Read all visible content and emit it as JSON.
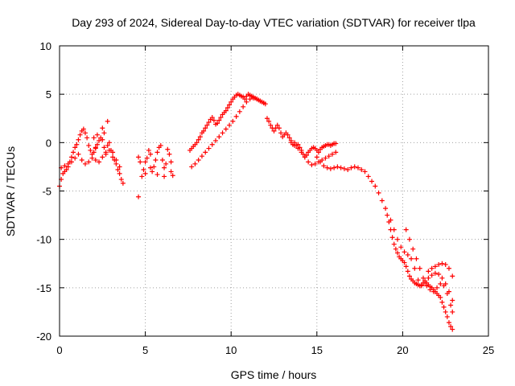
{
  "chart_data": {
    "type": "scatter",
    "title": "Day 293 of 2024, Sidereal Day-to-day VTEC variation (SDTVAR) for receiver tlpa",
    "xlabel": "GPS time / hours",
    "ylabel": "SDTVAR / TECUs",
    "xlim": [
      0,
      25
    ],
    "ylim": [
      -20,
      10
    ],
    "xticks": [
      0,
      5,
      10,
      15,
      20,
      25
    ],
    "yticks": [
      -20,
      -15,
      -10,
      -5,
      0,
      5,
      10
    ],
    "grid": true,
    "marker": "+",
    "color": "#ff0000",
    "series": [
      {
        "name": "SDTVAR",
        "x": [
          0.0,
          0.1,
          0.2,
          0.3,
          0.4,
          0.5,
          0.6,
          0.7,
          0.8,
          0.9,
          1.0,
          1.1,
          1.2,
          1.3,
          1.4,
          1.5,
          1.6,
          1.7,
          1.8,
          1.9,
          2.0,
          2.1,
          2.2,
          2.3,
          2.4,
          2.5,
          2.6,
          2.7,
          2.8,
          2.9,
          3.0,
          3.1,
          3.2,
          3.3,
          3.4,
          3.5,
          3.6,
          3.7,
          0.1,
          0.3,
          0.5,
          0.7,
          0.9,
          1.1,
          1.3,
          1.5,
          1.7,
          1.9,
          2.1,
          2.3,
          2.5,
          2.7,
          2.9,
          3.1,
          3.3,
          3.5,
          2.0,
          2.2,
          2.5,
          2.8,
          2.1,
          2.6,
          4.6,
          4.7,
          4.8,
          4.9,
          5.0,
          5.1,
          5.2,
          5.3,
          5.4,
          5.5,
          5.6,
          5.7,
          5.8,
          5.9,
          6.0,
          6.1,
          6.2,
          6.3,
          6.4,
          6.5,
          6.6,
          4.6,
          5.0,
          5.3,
          5.7,
          6.1,
          6.5,
          7.6,
          7.7,
          7.8,
          7.9,
          8.0,
          8.1,
          8.2,
          8.3,
          8.4,
          8.5,
          8.6,
          8.7,
          8.8,
          8.9,
          9.0,
          9.1,
          9.2,
          9.3,
          9.4,
          9.5,
          9.6,
          9.7,
          9.8,
          9.9,
          10.0,
          10.1,
          10.2,
          10.3,
          10.4,
          10.5,
          10.6,
          10.7,
          10.8,
          10.9,
          11.0,
          11.1,
          11.2,
          11.3,
          11.4,
          11.5,
          11.6,
          11.7,
          11.8,
          11.9,
          12.0,
          7.7,
          7.9,
          8.1,
          8.3,
          8.5,
          8.7,
          8.9,
          9.1,
          9.3,
          9.5,
          9.7,
          9.9,
          10.1,
          10.3,
          10.5,
          10.7,
          10.9,
          11.1,
          11.3,
          11.5,
          11.7,
          11.9,
          12.1,
          12.2,
          12.3,
          12.4,
          12.5,
          12.6,
          12.7,
          12.8,
          12.9,
          13.0,
          13.1,
          13.2,
          13.3,
          13.4,
          13.5,
          13.6,
          13.7,
          13.8,
          13.9,
          14.0,
          14.1,
          14.2,
          14.3,
          14.4,
          14.5,
          14.6,
          14.7,
          14.8,
          14.9,
          15.0,
          15.1,
          15.2,
          15.3,
          15.4,
          15.5,
          15.6,
          15.7,
          15.8,
          15.9,
          16.0,
          16.1,
          13.5,
          13.7,
          13.9,
          14.1,
          14.3,
          14.5,
          14.7,
          14.9,
          15.1,
          15.3,
          15.5,
          15.7,
          15.9,
          16.1,
          15.0,
          15.2,
          15.4,
          15.6,
          15.8,
          16.0,
          16.2,
          16.4,
          16.6,
          16.8,
          17.0,
          17.2,
          17.4,
          17.6,
          17.8,
          18.0,
          18.2,
          18.4,
          18.6,
          18.8,
          19.0,
          19.1,
          19.2,
          19.3,
          19.4,
          19.5,
          19.6,
          19.7,
          19.8,
          19.9,
          20.0,
          20.1,
          20.2,
          20.3,
          20.4,
          20.5,
          20.6,
          20.7,
          20.8,
          20.9,
          21.0,
          21.1,
          21.2,
          21.3,
          21.4,
          21.5,
          21.6,
          21.7,
          21.8,
          21.9,
          22.0,
          22.1,
          22.2,
          22.3,
          22.4,
          22.5,
          22.6,
          22.7,
          22.8,
          22.9,
          19.3,
          19.5,
          19.7,
          19.9,
          20.1,
          20.3,
          20.5,
          20.7,
          20.9,
          21.1,
          21.3,
          21.5,
          21.7,
          21.9,
          22.1,
          22.3,
          22.5,
          22.7,
          22.9,
          20.2,
          20.4,
          20.6,
          20.8,
          21.0,
          21.2,
          21.4,
          21.6,
          21.8,
          22.0,
          22.2,
          22.4,
          22.6,
          22.8,
          22.9,
          21.5,
          21.7,
          21.9,
          22.1,
          22.3,
          22.5,
          22.7,
          22.9
        ],
        "y": [
          -4.5,
          -3.8,
          -3.2,
          -3.0,
          -2.8,
          -2.5,
          -2.0,
          -1.5,
          -1.0,
          -0.5,
          -0.2,
          0.3,
          0.8,
          1.2,
          1.4,
          1.0,
          0.5,
          -0.3,
          -0.8,
          -1.2,
          -1.0,
          -0.6,
          -0.2,
          0.2,
          0.5,
          0.3,
          -0.5,
          -1.0,
          -0.3,
          0.0,
          -0.8,
          -1.5,
          -1.8,
          -2.2,
          -2.8,
          -3.2,
          -3.8,
          -4.2,
          -2.6,
          -2.4,
          -2.2,
          -2.0,
          -1.6,
          -1.2,
          -1.8,
          -2.2,
          -2.0,
          -1.6,
          -1.8,
          -2.0,
          -1.5,
          -1.2,
          -0.8,
          -1.0,
          -1.8,
          -2.5,
          0.5,
          0.8,
          1.5,
          2.2,
          -0.5,
          1.0,
          -1.5,
          -2.0,
          -3.5,
          -2.8,
          -2.0,
          -1.6,
          -0.8,
          -1.2,
          -3.0,
          -2.5,
          -1.8,
          -1.0,
          -0.5,
          -0.3,
          -1.8,
          -2.6,
          -2.2,
          -0.7,
          -1.2,
          -2.0,
          -3.4,
          -5.6,
          -3.2,
          -2.6,
          -3.3,
          -3.5,
          -3.0,
          -0.8,
          -0.6,
          -0.4,
          -0.2,
          0.0,
          0.3,
          0.6,
          1.0,
          1.2,
          1.5,
          1.8,
          2.1,
          2.4,
          2.6,
          2.3,
          1.9,
          2.0,
          2.3,
          2.6,
          2.9,
          3.1,
          3.3,
          3.6,
          3.9,
          4.2,
          4.5,
          4.7,
          4.9,
          5.0,
          4.9,
          4.8,
          4.7,
          4.5,
          4.8,
          5.0,
          4.9,
          4.8,
          4.7,
          4.6,
          4.5,
          4.4,
          4.3,
          4.2,
          4.1,
          4.0,
          -2.5,
          -2.2,
          -1.8,
          -1.4,
          -1.0,
          -0.6,
          -0.2,
          0.2,
          0.6,
          1.0,
          1.4,
          1.8,
          2.2,
          2.7,
          3.2,
          3.7,
          4.2,
          4.5,
          4.6,
          4.5,
          4.3,
          4.1,
          2.5,
          2.2,
          1.8,
          1.5,
          1.2,
          1.5,
          1.8,
          1.5,
          1.0,
          0.6,
          0.8,
          1.0,
          0.8,
          0.5,
          0.2,
          -0.2,
          0.0,
          -0.3,
          -0.2,
          -0.5,
          -0.8,
          -1.2,
          -1.5,
          -1.3,
          -1.0,
          -0.8,
          -0.6,
          -0.5,
          -0.6,
          -0.8,
          -1.0,
          -0.7,
          -0.5,
          -0.4,
          -0.3,
          -0.2,
          -0.2,
          -0.3,
          -0.2,
          -0.1,
          -0.1,
          0.0,
          -0.3,
          -0.6,
          -1.0,
          -1.5,
          -2.0,
          -2.3,
          -2.2,
          -2.0,
          -1.8,
          -1.6,
          -1.4,
          -1.2,
          -1.0,
          -1.5,
          -2.0,
          -2.4,
          -2.6,
          -2.7,
          -2.6,
          -2.5,
          -2.6,
          -2.7,
          -2.8,
          -2.6,
          -2.5,
          -2.6,
          -2.8,
          -3.0,
          -3.5,
          -4.0,
          -4.5,
          -5.2,
          -6.0,
          -6.8,
          -7.5,
          -8.2,
          -9.0,
          -9.8,
          -10.5,
          -11.0,
          -11.4,
          -11.8,
          -12.0,
          -12.2,
          -12.4,
          -12.8,
          -13.3,
          -13.8,
          -14.1,
          -14.3,
          -14.5,
          -14.6,
          -14.7,
          -14.8,
          -14.7,
          -14.5,
          -14.3,
          -14.5,
          -14.7,
          -14.9,
          -15.0,
          -15.2,
          -15.4,
          -15.6,
          -15.8,
          -16.0,
          -16.5,
          -17.0,
          -17.5,
          -18.0,
          -18.6,
          -19.0,
          -19.3,
          -8.0,
          -9.0,
          -10.0,
          -10.8,
          -11.3,
          -11.6,
          -12.0,
          -13.0,
          -14.2,
          -14.8,
          -14.5,
          -14.0,
          -13.7,
          -13.5,
          -13.6,
          -14.0,
          -14.6,
          -15.4,
          -16.3,
          -9.0,
          -10.0,
          -11.0,
          -12.0,
          -13.0,
          -14.0,
          -14.8,
          -15.2,
          -15.4,
          -15.0,
          -14.6,
          -14.8,
          -15.6,
          -16.8,
          -17.5,
          -13.3,
          -13.0,
          -12.8,
          -12.6,
          -12.5,
          -12.6,
          -13.0,
          -13.8
        ]
      }
    ]
  }
}
